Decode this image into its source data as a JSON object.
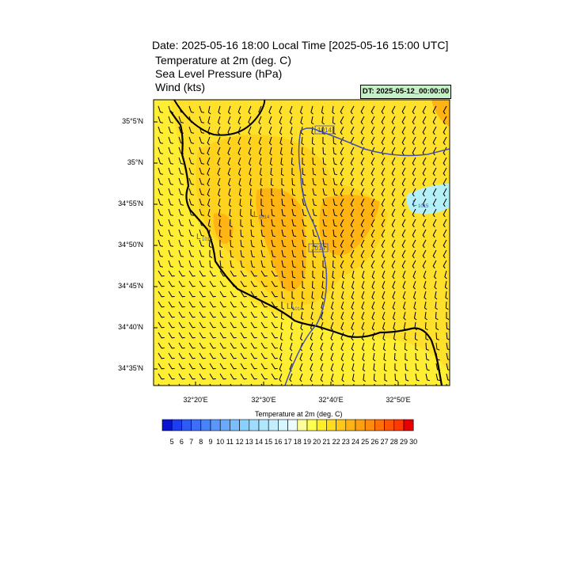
{
  "header": {
    "title": "Date: 2025-05-16  18:00 Local Time [2025-05-16  15:00 UTC]",
    "variables": [
      "Temperature at 2m   (deg. C)",
      "Sea Level Pressure   (hPa)",
      "Wind   (kts)"
    ],
    "dt_badge": "DT: 2025-05-12_00:00:00"
  },
  "axes": {
    "lat_labels": [
      "35°5'N",
      "35°N",
      "34°55'N",
      "34°50'N",
      "34°45'N",
      "34°40'N",
      "34°35'N"
    ],
    "lon_labels": [
      "32°20'E",
      "32°30'E",
      "32°40'E",
      "32°50'E"
    ]
  },
  "isobars": {
    "labels": [
      "1014",
      "1014"
    ],
    "lows": [
      {
        "symbol": "L",
        "value": "1014"
      },
      {
        "symbol": "L",
        "value": "1015"
      },
      {
        "symbol": "L",
        "value": "1014"
      },
      {
        "symbol": "L",
        "value": "1015"
      }
    ]
  },
  "colorbar": {
    "title": "Temperature at 2m  (deg. C)",
    "labels": [
      "5",
      "6",
      "7",
      "8",
      "9",
      "10",
      "11",
      "12",
      "13",
      "14",
      "15",
      "16",
      "17",
      "18",
      "19",
      "20",
      "21",
      "22",
      "23",
      "24",
      "25",
      "26",
      "27",
      "28",
      "29",
      "30"
    ],
    "colors": [
      "#0a14d2",
      "#1e3cf0",
      "#2e5af5",
      "#3c6ef8",
      "#4a82fa",
      "#5a96fc",
      "#6aaafd",
      "#7abefe",
      "#8ad0fe",
      "#9ddcfe",
      "#b0e6fe",
      "#c4eefe",
      "#d8f6fe",
      "#ecfcfe",
      "#ffff9a",
      "#ffff50",
      "#ffee28",
      "#ffdc1c",
      "#ffc818",
      "#ffb414",
      "#ffa010",
      "#ff8c0c",
      "#ff7008",
      "#ff5406",
      "#ff3804",
      "#e80000"
    ]
  },
  "colors": {
    "coastline": "#000000",
    "isobar": "#4450b0",
    "wind_barb": "#000000",
    "land_warm": "#ffd21e",
    "land_hot": "#ffb414",
    "sea_cool": "#ffea2a",
    "cool_patch": "#b4f0f8"
  }
}
